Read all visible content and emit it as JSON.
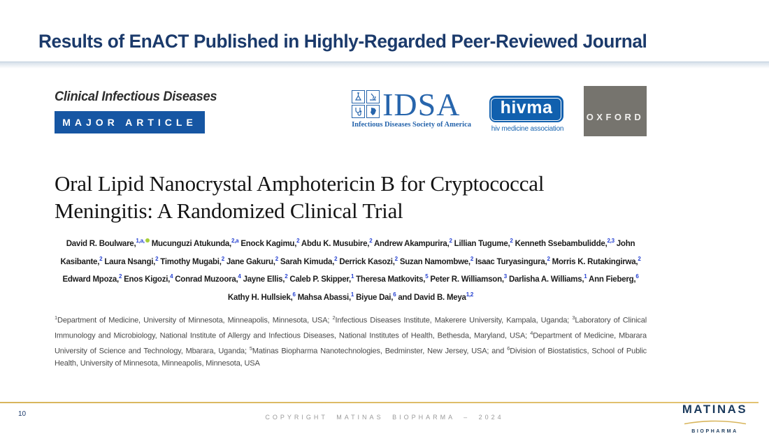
{
  "slide": {
    "title": "Results of EnACT Published in Highly-Regarded Peer-Reviewed Journal",
    "page_number": "10",
    "footer_copyright": "COPYRIGHT MATINAS BIOPHARMA – 2024"
  },
  "journal": {
    "name": "Clinical Infectious Diseases",
    "badge": "MAJOR ARTICLE"
  },
  "logos": {
    "idsa": {
      "acronym": "IDSA",
      "tagline": "Infectious Diseases Society of America"
    },
    "hivma": {
      "wordmark": "hivma",
      "tagline": "hiv medicine association"
    },
    "oxford": {
      "wordmark": "OXFORD"
    }
  },
  "article": {
    "title_line1": "Oral Lipid Nanocrystal Amphotericin B for Cryptococcal",
    "title_line2": "Meningitis: A Randomized Clinical Trial",
    "authors": [
      {
        "name": "David R. Boulware,",
        "sup": "1,a,",
        "orcid": true
      },
      {
        "name": "Mucunguzi Atukunda,",
        "sup": "2,a"
      },
      {
        "name": "Enock Kagimu,",
        "sup": "2"
      },
      {
        "name": "Abdu K. Musubire,",
        "sup": "2"
      },
      {
        "name": "Andrew Akampurira,",
        "sup": "2"
      },
      {
        "name": "Lillian Tugume,",
        "sup": "2"
      },
      {
        "name": "Kenneth Ssebambulidde,",
        "sup": "2,3"
      },
      {
        "name": "John Kasibante,",
        "sup": "2"
      },
      {
        "name": "Laura Nsangi,",
        "sup": "2"
      },
      {
        "name": "Timothy Mugabi,",
        "sup": "2"
      },
      {
        "name": "Jane Gakuru,",
        "sup": "2"
      },
      {
        "name": "Sarah Kimuda,",
        "sup": "2"
      },
      {
        "name": "Derrick Kasozi,",
        "sup": "2"
      },
      {
        "name": "Suzan Namombwe,",
        "sup": "2"
      },
      {
        "name": "Isaac Turyasingura,",
        "sup": "2"
      },
      {
        "name": "Morris K. Rutakingirwa,",
        "sup": "2"
      },
      {
        "name": "Edward Mpoza,",
        "sup": "2"
      },
      {
        "name": "Enos Kigozi,",
        "sup": "4"
      },
      {
        "name": "Conrad Muzoora,",
        "sup": "4"
      },
      {
        "name": "Jayne Ellis,",
        "sup": "2"
      },
      {
        "name": "Caleb P. Skipper,",
        "sup": "1"
      },
      {
        "name": "Theresa Matkovits,",
        "sup": "5"
      },
      {
        "name": "Peter R. Williamson,",
        "sup": "3"
      },
      {
        "name": "Darlisha A. Williams,",
        "sup": "1"
      },
      {
        "name": "Ann Fieberg,",
        "sup": "6"
      },
      {
        "name": "Kathy H. Hullsiek,",
        "sup": "6"
      },
      {
        "name": "Mahsa Abassi,",
        "sup": "1"
      },
      {
        "name": "Biyue Dai,",
        "sup": "6"
      },
      {
        "name": "and David B. Meya",
        "sup": "1,2"
      }
    ],
    "affiliations": [
      {
        "sup": "1",
        "text": "Department of Medicine, University of Minnesota, Minneapolis, Minnesota, USA; "
      },
      {
        "sup": "2",
        "text": "Infectious Diseases Institute, Makerere University, Kampala, Uganda; "
      },
      {
        "sup": "3",
        "text": "Laboratory of Clinical Immunology and Microbiology, National Institute of Allergy and Infectious Diseases, National Institutes of Health, Bethesda, Maryland, USA; "
      },
      {
        "sup": "4",
        "text": "Department of Medicine, Mbarara University of Science and Technology, Mbarara, Uganda; "
      },
      {
        "sup": "5",
        "text": "Matinas Biopharma Nanotechnologies, Bedminster, New Jersey, USA; and "
      },
      {
        "sup": "6",
        "text": "Division of Biostatistics, School of Public Health, University of Minnesota, Minneapolis, Minnesota, USA"
      }
    ]
  },
  "brand": {
    "matinas_wordmark": "MATINAS",
    "matinas_sub": "BIOPHARMA",
    "accent_gold": "#D8B55C",
    "navy": "#1B3A6B",
    "badge_blue": "#1656A3",
    "idsa_blue": "#2765AC",
    "hivma_blue": "#1160AE",
    "oxford_gray": "#76746E",
    "orcid_green": "#A6CE39",
    "superscript_blue": "#2440D0"
  }
}
